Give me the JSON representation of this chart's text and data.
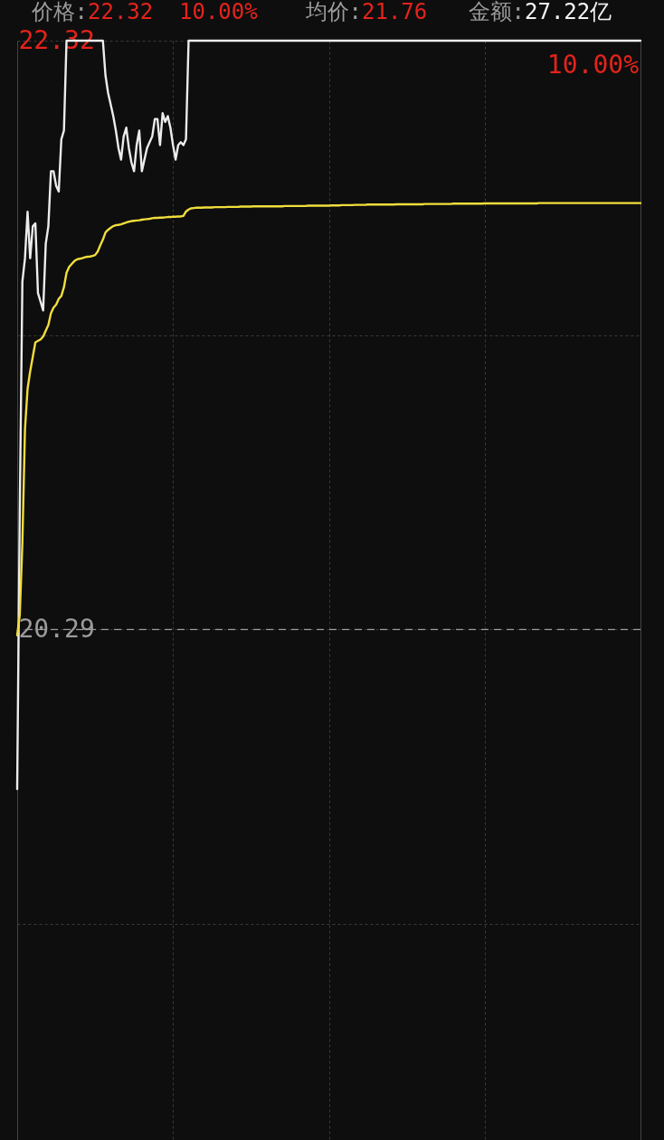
{
  "chart_data": {
    "type": "line",
    "annotations": [
      "价格:22.32",
      "10.00%",
      "均价:21.76",
      "金额:27.22亿",
      "10.00%"
    ],
    "categories": [
      null,
      null,
      null,
      null,
      null,
      null,
      null,
      null,
      null,
      null,
      null,
      null,
      null,
      null,
      null,
      null,
      null,
      null,
      null,
      null,
      null,
      null,
      null,
      null,
      null,
      null,
      null,
      null,
      null,
      null,
      null,
      null,
      null,
      null,
      null,
      null,
      null,
      null,
      null,
      null,
      null,
      null,
      null,
      null,
      null,
      null,
      null,
      null,
      null,
      null,
      null,
      null,
      null,
      null,
      null,
      null,
      null,
      null,
      null,
      null,
      null,
      null,
      null,
      null,
      null,
      null,
      null,
      null,
      null,
      null,
      null,
      null,
      null,
      null,
      null,
      null,
      null,
      null,
      null,
      null,
      null,
      null,
      null,
      null,
      null,
      null,
      null,
      null,
      null,
      null,
      null,
      null,
      null,
      null,
      null,
      null,
      null,
      null,
      null,
      null,
      null,
      null,
      null,
      null,
      null,
      null,
      null,
      null,
      null,
      null,
      null,
      null,
      null,
      null,
      null,
      null,
      null,
      null,
      null,
      null,
      null,
      null,
      null,
      null,
      null,
      null,
      null,
      null,
      null,
      null,
      null,
      null,
      null,
      null,
      null,
      null,
      null,
      null,
      null,
      null,
      null,
      null,
      null,
      null,
      null,
      null,
      null,
      null,
      null,
      null,
      null,
      null,
      null,
      null,
      null,
      null,
      null,
      null,
      null,
      null,
      null,
      null,
      null,
      null,
      null,
      null,
      null,
      null,
      null,
      null,
      null,
      null,
      null,
      null,
      null,
      null,
      null,
      null,
      null,
      null,
      null,
      null,
      null,
      null,
      null,
      null,
      null,
      null,
      null,
      null,
      null,
      null,
      null,
      null,
      null,
      null,
      null,
      null,
      null,
      null,
      null,
      null,
      null,
      null,
      null,
      null,
      null,
      null,
      null,
      null,
      null,
      null,
      null,
      null,
      null,
      null,
      null,
      null,
      null,
      null,
      null,
      null,
      null,
      null,
      null,
      null,
      null,
      null,
      null,
      null,
      null,
      null,
      null,
      null,
      null,
      null,
      null,
      null,
      null,
      null,
      null
    ],
    "series": [
      {
        "color": "#ececec",
        "values": [
          19.74,
          20.71,
          21.49,
          21.57,
          21.73,
          21.57,
          21.68,
          21.69,
          21.45,
          21.42,
          21.39,
          21.62,
          21.68,
          21.87,
          21.87,
          21.82,
          21.8,
          21.98,
          22.01,
          22.32,
          22.32,
          22.32,
          22.32,
          22.32,
          22.32,
          22.32,
          22.32,
          22.32,
          22.32,
          22.32,
          22.32,
          22.32,
          22.32,
          22.32,
          22.2,
          22.14,
          22.1,
          22.06,
          22.01,
          21.95,
          21.91,
          21.99,
          22.02,
          21.95,
          21.9,
          21.87,
          21.96,
          22.01,
          21.87,
          21.91,
          21.95,
          21.97,
          21.99,
          22.05,
          22.05,
          21.96,
          22.07,
          22.04,
          22.06,
          22.02,
          21.96,
          21.91,
          21.96,
          21.97,
          21.96,
          21.98,
          22.32,
          22.32,
          22.32,
          22.32,
          22.32,
          22.32,
          22.32,
          22.32,
          22.32,
          22.32,
          22.32,
          22.32,
          22.32,
          22.32,
          22.32,
          22.32,
          22.32,
          22.32,
          22.32,
          22.32,
          22.32,
          22.32,
          22.32,
          22.32,
          22.32,
          22.32,
          22.32,
          22.32,
          22.32,
          22.32,
          22.32,
          22.32,
          22.32,
          22.32,
          22.32,
          22.32,
          22.32,
          22.32,
          22.32,
          22.32,
          22.32,
          22.32,
          22.32,
          22.32,
          22.32,
          22.32,
          22.32,
          22.32,
          22.32,
          22.32,
          22.32,
          22.32,
          22.32,
          22.32,
          22.32,
          22.32,
          22.32,
          22.32,
          22.32,
          22.32,
          22.32,
          22.32,
          22.32,
          22.32,
          22.32,
          22.32,
          22.32,
          22.32,
          22.32,
          22.32,
          22.32,
          22.32,
          22.32,
          22.32,
          22.32,
          22.32,
          22.32,
          22.32,
          22.32,
          22.32,
          22.32,
          22.32,
          22.32,
          22.32,
          22.32,
          22.32,
          22.32,
          22.32,
          22.32,
          22.32,
          22.32,
          22.32,
          22.32,
          22.32,
          22.32,
          22.32,
          22.32,
          22.32,
          22.32,
          22.32,
          22.32,
          22.32,
          22.32,
          22.32,
          22.32,
          22.32,
          22.32,
          22.32,
          22.32,
          22.32,
          22.32,
          22.32,
          22.32,
          22.32,
          22.32,
          22.32,
          22.32,
          22.32,
          22.32,
          22.32,
          22.32,
          22.32,
          22.32,
          22.32,
          22.32,
          22.32,
          22.32,
          22.32,
          22.32,
          22.32,
          22.32,
          22.32,
          22.32,
          22.32,
          22.32,
          22.32,
          22.32,
          22.32,
          22.32,
          22.32,
          22.32,
          22.32,
          22.32,
          22.32,
          22.32,
          22.32,
          22.32,
          22.32,
          22.32,
          22.32,
          22.32,
          22.32,
          22.32,
          22.32,
          22.32,
          22.32,
          22.32,
          22.32,
          22.32,
          22.32,
          22.32,
          22.32,
          22.32,
          22.32,
          22.32,
          22.32,
          22.32,
          22.32,
          22.32,
          22.32,
          22.32,
          22.32,
          22.32,
          22.32,
          22.32
        ]
      },
      {
        "color": "#f1de3c",
        "values": [
          20.27,
          20.34,
          20.59,
          20.98,
          21.12,
          21.18,
          21.23,
          21.28,
          21.285,
          21.29,
          21.3,
          21.32,
          21.34,
          21.38,
          21.4,
          21.41,
          21.43,
          21.44,
          21.47,
          21.52,
          21.54,
          21.55,
          21.56,
          21.566,
          21.568,
          21.57,
          21.573,
          21.575,
          21.576,
          21.578,
          21.581,
          21.593,
          21.615,
          21.634,
          21.659,
          21.668,
          21.675,
          21.681,
          21.684,
          21.685,
          21.687,
          21.69,
          21.693,
          21.696,
          21.698,
          21.699,
          21.7,
          21.701,
          21.703,
          21.704,
          21.705,
          21.706,
          21.708,
          21.709,
          21.709,
          21.71,
          21.71,
          21.711,
          21.712,
          21.712,
          21.713,
          21.713,
          21.714,
          21.714,
          21.716,
          21.731,
          21.738,
          21.742,
          21.743,
          21.744,
          21.744,
          21.744,
          21.745,
          21.745,
          21.745,
          21.745,
          21.746,
          21.746,
          21.746,
          21.746,
          21.746,
          21.747,
          21.747,
          21.747,
          21.747,
          21.747,
          21.748,
          21.748,
          21.748,
          21.748,
          21.748,
          21.749,
          21.749,
          21.749,
          21.749,
          21.749,
          21.749,
          21.749,
          21.749,
          21.749,
          21.749,
          21.749,
          21.749,
          21.75,
          21.75,
          21.75,
          21.75,
          21.75,
          21.75,
          21.75,
          21.75,
          21.75,
          21.751,
          21.751,
          21.751,
          21.751,
          21.751,
          21.751,
          21.751,
          21.751,
          21.751,
          21.752,
          21.752,
          21.752,
          21.752,
          21.753,
          21.753,
          21.753,
          21.753,
          21.753,
          21.754,
          21.754,
          21.754,
          21.754,
          21.754,
          21.755,
          21.755,
          21.755,
          21.755,
          21.755,
          21.755,
          21.755,
          21.755,
          21.755,
          21.755,
          21.755,
          21.756,
          21.756,
          21.756,
          21.756,
          21.756,
          21.756,
          21.756,
          21.756,
          21.756,
          21.756,
          21.756,
          21.757,
          21.757,
          21.757,
          21.757,
          21.757,
          21.757,
          21.757,
          21.757,
          21.757,
          21.757,
          21.757,
          21.758,
          21.758,
          21.758,
          21.758,
          21.758,
          21.758,
          21.758,
          21.758,
          21.758,
          21.758,
          21.758,
          21.758,
          21.759,
          21.759,
          21.759,
          21.759,
          21.759,
          21.759,
          21.759,
          21.759,
          21.759,
          21.759,
          21.759,
          21.759,
          21.759,
          21.759,
          21.759,
          21.759,
          21.759,
          21.759,
          21.759,
          21.759,
          21.759,
          21.76,
          21.76,
          21.76,
          21.76,
          21.76,
          21.76,
          21.76,
          21.76,
          21.76,
          21.76,
          21.76,
          21.76,
          21.76,
          21.76,
          21.76,
          21.76,
          21.76,
          21.76,
          21.76,
          21.76,
          21.76,
          21.76,
          21.76,
          21.76,
          21.76,
          21.76,
          21.76,
          21.76,
          21.76,
          21.76,
          21.76,
          21.76,
          21.76,
          21.76,
          21.76,
          21.76,
          21.76,
          21.76,
          21.76,
          21.76
        ]
      }
    ],
    "ylim": [
      18.53,
      22.32
    ],
    "yticks": [
      22.32,
      {
        "value": 21.305,
        "label": null
      },
      20.29,
      {
        "value": 19.275,
        "label": null
      }
    ],
    "ref_lines": [
      {
        "axis": "y",
        "value": 20.29,
        "color": "#9e9e9e",
        "line_style": "dashed"
      }
    ],
    "grid": true,
    "tick_labels": "y"
  }
}
